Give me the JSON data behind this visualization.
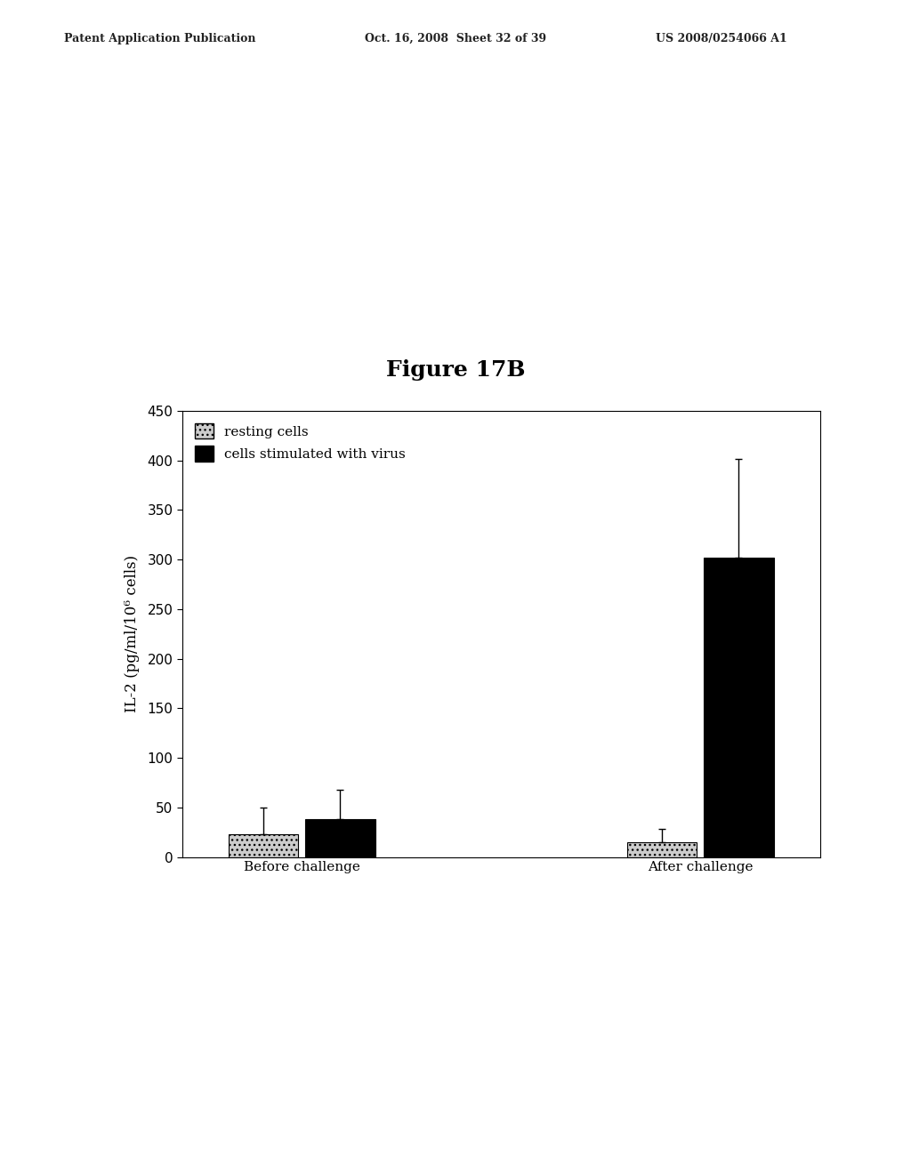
{
  "figure_title": "Figure 17B",
  "header_left": "Patent Application Publication",
  "header_middle": "Oct. 16, 2008  Sheet 32 of 39",
  "header_right": "US 2008/0254066 A1",
  "groups": [
    "Before challenge",
    "After challenge"
  ],
  "bar_labels": [
    "resting cells",
    "cells stimulated with virus"
  ],
  "bar_values": [
    [
      23,
      38
    ],
    [
      15,
      302
    ]
  ],
  "bar_errors": [
    [
      27,
      30
    ],
    [
      13,
      100
    ]
  ],
  "bar_hatch": [
    "sparse",
    ""
  ],
  "ylabel": "IL-2 (pg/ml/10⁶ cells)",
  "ylim": [
    0,
    450
  ],
  "yticks": [
    0,
    50,
    100,
    150,
    200,
    250,
    300,
    350,
    400,
    450
  ],
  "background_color": "#ffffff",
  "title_fontsize": 18,
  "axis_fontsize": 12,
  "tick_fontsize": 11,
  "legend_fontsize": 11,
  "header_fontsize": 9
}
